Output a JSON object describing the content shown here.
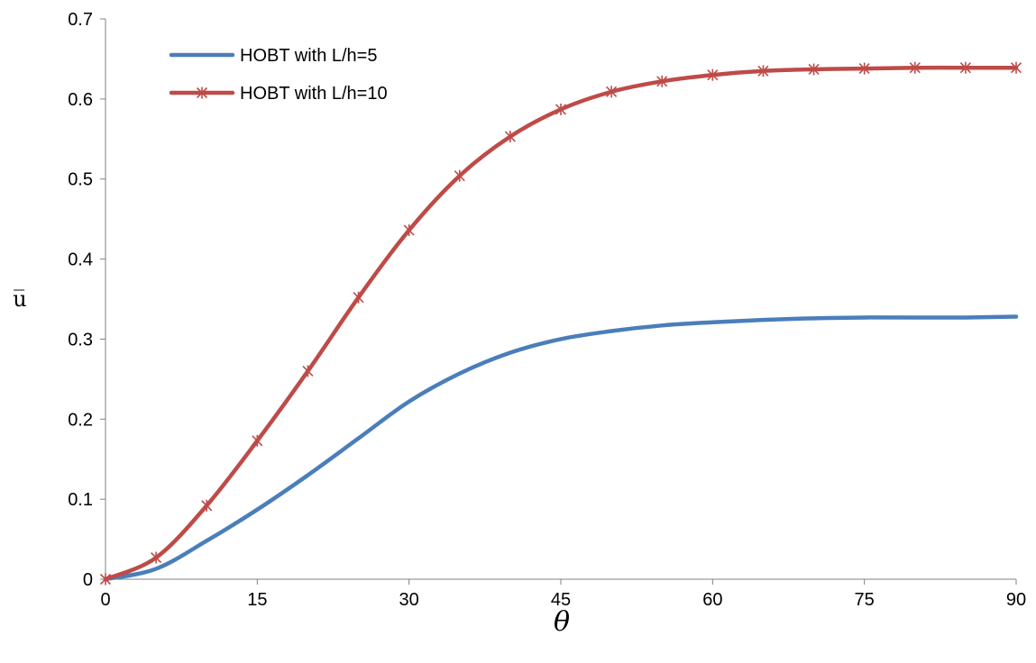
{
  "chart_data": {
    "type": "line",
    "xlabel": "θ",
    "ylabel": "u̅",
    "xlim": [
      0,
      90
    ],
    "ylim": [
      0,
      0.7
    ],
    "xticks": [
      0,
      15,
      30,
      45,
      60,
      75,
      90
    ],
    "yticks": [
      0,
      0.1,
      0.2,
      0.3,
      0.4,
      0.5,
      0.6,
      0.7
    ],
    "xtick_labels": [
      "0",
      "15",
      "30",
      "45",
      "60",
      "75",
      "90"
    ],
    "ytick_labels": [
      "0",
      "0.1",
      "0.2",
      "0.3",
      "0.4",
      "0.5",
      "0.6",
      "0.7"
    ],
    "grid": false,
    "legend_position": "top-left",
    "x": [
      0,
      5,
      10,
      15,
      20,
      25,
      30,
      35,
      40,
      45,
      50,
      55,
      60,
      65,
      70,
      75,
      80,
      85,
      90
    ],
    "series": [
      {
        "name": "HOBT with L/h=5",
        "color": "#4a7ebb",
        "marker": "none",
        "values": [
          0,
          0.013,
          0.048,
          0.087,
          0.13,
          0.176,
          0.222,
          0.257,
          0.283,
          0.3,
          0.31,
          0.317,
          0.321,
          0.324,
          0.326,
          0.327,
          0.327,
          0.327,
          0.328
        ]
      },
      {
        "name": "HOBT with L/h=10",
        "color": "#be4b48",
        "marker": "asterisk",
        "values": [
          0,
          0.027,
          0.092,
          0.173,
          0.26,
          0.352,
          0.436,
          0.504,
          0.553,
          0.587,
          0.609,
          0.622,
          0.63,
          0.635,
          0.637,
          0.638,
          0.639,
          0.639,
          0.639
        ]
      }
    ]
  }
}
